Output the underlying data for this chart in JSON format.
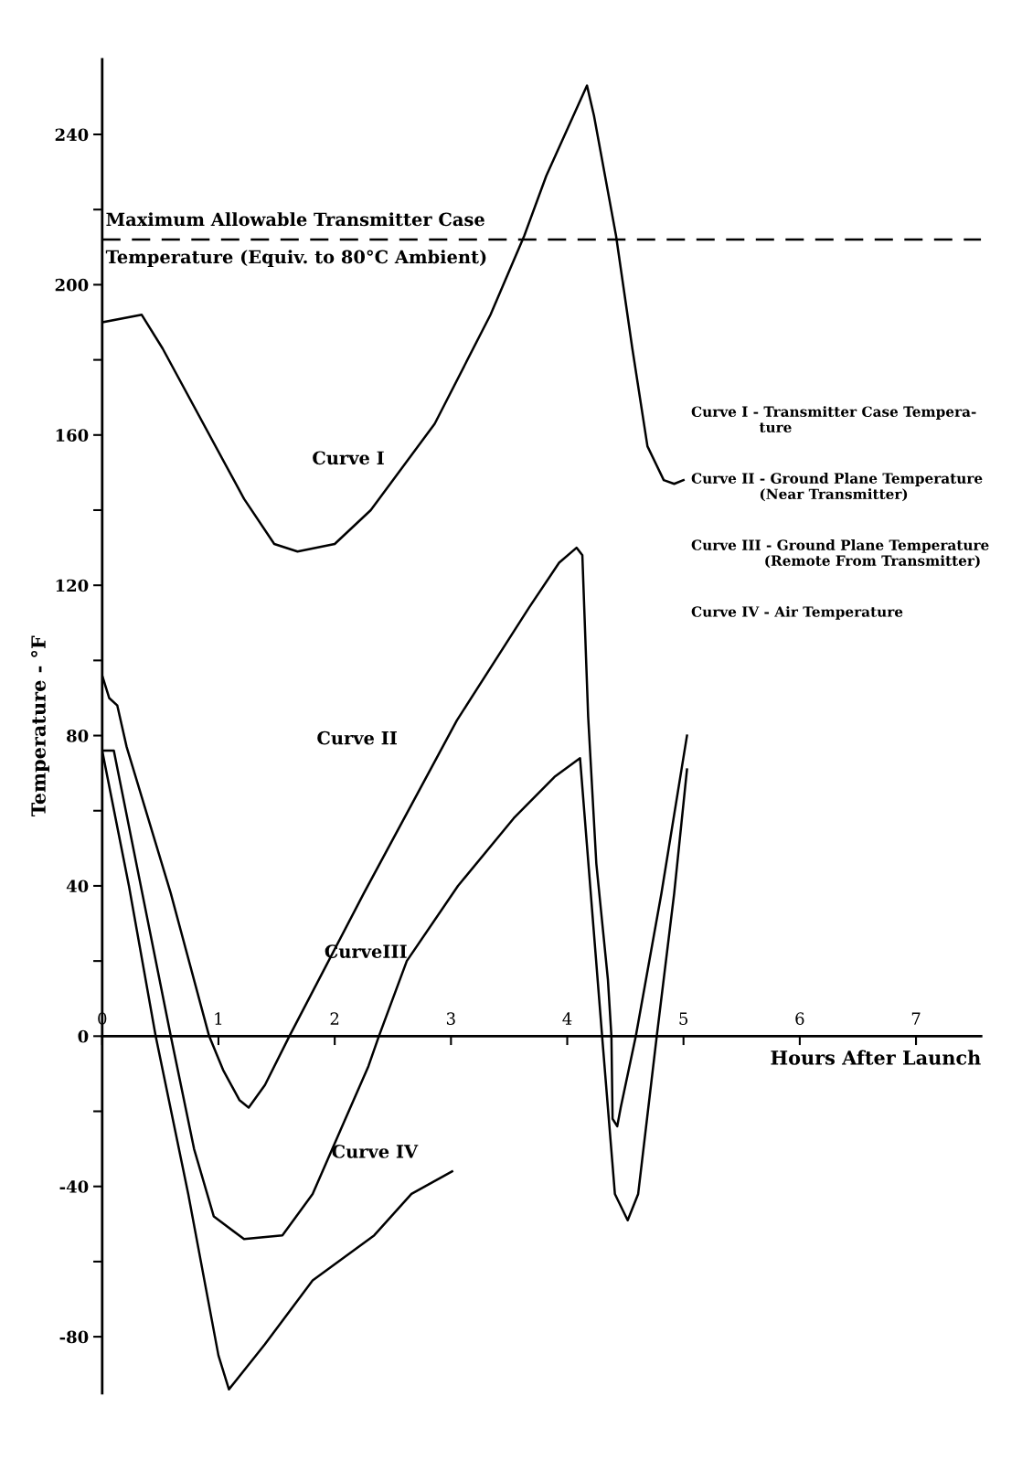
{
  "chart_data": {
    "type": "line",
    "xlabel": "Hours After Launch",
    "ylabel": "Temperature - °F",
    "xlim": [
      0,
      7.56
    ],
    "ylim": [
      -95,
      260
    ],
    "xticks": [
      0,
      1,
      2,
      3,
      4,
      5,
      6,
      7
    ],
    "yticks": [
      240,
      {
        "value": 220,
        "label": null
      },
      200,
      {
        "value": 180,
        "label": null
      },
      160,
      {
        "value": 140,
        "label": null
      },
      120,
      {
        "value": 100,
        "label": null
      },
      80,
      {
        "value": 60,
        "label": null
      },
      40,
      {
        "value": 20,
        "label": null
      },
      0,
      {
        "value": -20,
        "label": null
      },
      -40,
      {
        "value": -60,
        "label": null
      },
      -80
    ],
    "grid": false,
    "marker": "none",
    "line_style": "solid",
    "series": [
      {
        "color": "#000000",
        "x": [
          0,
          0.34,
          0.52,
          1.22,
          1.48,
          1.68,
          2.0,
          2.31,
          2.86,
          3.34,
          3.63,
          3.82,
          4.17,
          4.23,
          4.42,
          4.56,
          4.69,
          4.83,
          4.92,
          5.0
        ],
        "values": [
          190,
          192,
          183,
          143,
          131,
          129,
          131,
          140,
          163,
          192,
          213,
          229,
          253,
          245,
          213,
          183,
          157,
          148,
          147,
          148
        ]
      },
      {
        "color": "#000000",
        "x": [
          0,
          0.06,
          0.13,
          0.21,
          0.59,
          0.92,
          1.04,
          1.18,
          1.26,
          1.4,
          1.61,
          2.25,
          3.05,
          3.67,
          3.93,
          4.08,
          4.13,
          4.18,
          4.25,
          4.35,
          4.38,
          4.39,
          4.43,
          4.46,
          4.59,
          4.81,
          5.03
        ],
        "values": [
          96,
          90,
          88,
          77,
          38,
          0,
          -9,
          -17,
          -19,
          -13,
          0,
          38,
          84,
          114,
          126,
          130,
          128,
          85,
          46,
          15,
          0,
          -22,
          -24,
          -19,
          0,
          38,
          80
        ]
      },
      {
        "color": "#000000",
        "x": [
          0,
          0.1,
          0.59,
          0.79,
          0.96,
          1.22,
          1.55,
          1.81,
          2.05,
          2.29,
          2.38,
          2.62,
          3.06,
          3.54,
          3.89,
          4.11,
          4.3,
          4.41,
          4.52,
          4.61,
          4.77,
          4.92,
          5.03
        ],
        "values": [
          76,
          76,
          0,
          -30,
          -48,
          -54,
          -53,
          -42,
          -25,
          -8,
          0,
          20,
          40,
          58,
          69,
          74,
          0,
          -42,
          -49,
          -42,
          0,
          38,
          71
        ]
      },
      {
        "color": "#000000",
        "x": [
          0,
          0.23,
          0.46,
          0.74,
          1.0,
          1.09,
          1.4,
          1.81,
          2.34,
          2.66,
          3.01
        ],
        "values": [
          76,
          40,
          0,
          -42,
          -85,
          -94,
          -82,
          -65,
          -53,
          -42,
          -36
        ]
      }
    ],
    "ref_lines": [
      {
        "axis": "y",
        "value": 212,
        "label": "Maximum Allowable Transmitter Case\nTemperature (Equiv. to 80°C Ambient)",
        "color": "#000000",
        "line_style": "dashed"
      }
    ],
    "annotations": [
      "Curve I",
      "Curve II",
      "CurveIII",
      "Curve IV",
      "Curve I - Transmitter Case Tempera-\n              ture",
      "Curve II - Ground Plane Temperature\n              (Near Transmitter)",
      "Curve III - Ground Plane Temperature\n               (Remote From Transmitter)",
      "Curve IV - Air Temperature"
    ]
  }
}
